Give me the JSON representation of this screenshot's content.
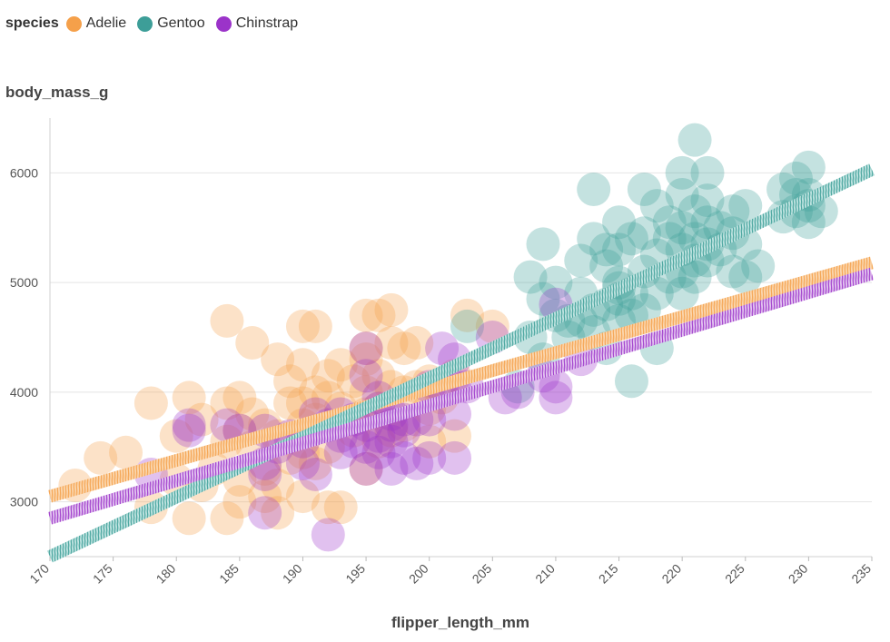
{
  "legend": {
    "title": "species",
    "items": [
      {
        "label": "Adelie",
        "color": "#f5a04a"
      },
      {
        "label": "Gentoo",
        "color": "#3d9e98"
      },
      {
        "label": "Chinstrap",
        "color": "#9b33c9"
      }
    ]
  },
  "chart_data": {
    "type": "scatter",
    "xlabel": "flipper_length_mm",
    "ylabel": "body_mass_g",
    "xlim": [
      170,
      235
    ],
    "ylim": [
      2500,
      6500
    ],
    "xticks": [
      170,
      175,
      180,
      185,
      190,
      195,
      200,
      205,
      210,
      215,
      220,
      225,
      230,
      235
    ],
    "yticks": [
      3000,
      4000,
      5000,
      6000
    ],
    "grid": true,
    "legend_position": "top-left",
    "series": [
      {
        "name": "Adelie",
        "color": "#f5a04a",
        "trend": {
          "x": [
            170,
            235
          ],
          "y": [
            3050,
            5180
          ]
        },
        "points": [
          [
            172,
            3150
          ],
          [
            174,
            3400
          ],
          [
            176,
            3450
          ],
          [
            178,
            2950
          ],
          [
            178,
            3900
          ],
          [
            180,
            3600
          ],
          [
            180,
            3200
          ],
          [
            181,
            3950
          ],
          [
            181,
            2850
          ],
          [
            182,
            3750
          ],
          [
            182,
            3150
          ],
          [
            183,
            3300
          ],
          [
            184,
            4650
          ],
          [
            184,
            3900
          ],
          [
            184,
            3550
          ],
          [
            184,
            2850
          ],
          [
            185,
            3950
          ],
          [
            185,
            3650
          ],
          [
            185,
            3200
          ],
          [
            185,
            3000
          ],
          [
            186,
            4450
          ],
          [
            186,
            3800
          ],
          [
            186,
            3500
          ],
          [
            187,
            3700
          ],
          [
            187,
            3300
          ],
          [
            187,
            3050
          ],
          [
            188,
            4300
          ],
          [
            188,
            3600
          ],
          [
            188,
            3150
          ],
          [
            188,
            2900
          ],
          [
            189,
            4100
          ],
          [
            189,
            3900
          ],
          [
            189,
            3400
          ],
          [
            190,
            4600
          ],
          [
            190,
            4250
          ],
          [
            190,
            3900
          ],
          [
            190,
            3700
          ],
          [
            190,
            3450
          ],
          [
            190,
            3050
          ],
          [
            191,
            4600
          ],
          [
            191,
            4000
          ],
          [
            191,
            3750
          ],
          [
            191,
            3350
          ],
          [
            192,
            4150
          ],
          [
            192,
            3950
          ],
          [
            192,
            3500
          ],
          [
            192,
            2950
          ],
          [
            193,
            4250
          ],
          [
            193,
            3850
          ],
          [
            193,
            2950
          ],
          [
            194,
            4100
          ],
          [
            194,
            3650
          ],
          [
            195,
            4700
          ],
          [
            195,
            4400
          ],
          [
            195,
            4300
          ],
          [
            195,
            4000
          ],
          [
            195,
            3800
          ],
          [
            195,
            3300
          ],
          [
            196,
            4700
          ],
          [
            196,
            4150
          ],
          [
            196,
            3850
          ],
          [
            196,
            3550
          ],
          [
            197,
            4750
          ],
          [
            197,
            4450
          ],
          [
            197,
            4050
          ],
          [
            197,
            3650
          ],
          [
            198,
            4400
          ],
          [
            198,
            4000
          ],
          [
            198,
            3700
          ],
          [
            199,
            4450
          ],
          [
            199,
            4050
          ],
          [
            200,
            4100
          ],
          [
            200,
            3850
          ],
          [
            200,
            3550
          ],
          [
            201,
            3950
          ],
          [
            202,
            4150
          ],
          [
            202,
            3600
          ],
          [
            203,
            4700
          ],
          [
            205,
            4600
          ]
        ]
      },
      {
        "name": "Gentoo",
        "color": "#3d9e98",
        "trend": {
          "x": [
            170,
            235
          ],
          "y": [
            2500,
            6030
          ]
        },
        "points": [
          [
            203,
            4600
          ],
          [
            207,
            4050
          ],
          [
            208,
            5050
          ],
          [
            208,
            4500
          ],
          [
            209,
            5350
          ],
          [
            209,
            4850
          ],
          [
            209,
            4300
          ],
          [
            210,
            4700
          ],
          [
            210,
            5000
          ],
          [
            211,
            4650
          ],
          [
            211,
            4500
          ],
          [
            212,
            5200
          ],
          [
            212,
            4900
          ],
          [
            212,
            4650
          ],
          [
            213,
            5850
          ],
          [
            213,
            5400
          ],
          [
            213,
            4750
          ],
          [
            213,
            4550
          ],
          [
            214,
            5300
          ],
          [
            214,
            5150
          ],
          [
            214,
            4800
          ],
          [
            214,
            4400
          ],
          [
            215,
            5550
          ],
          [
            215,
            5300
          ],
          [
            215,
            5000
          ],
          [
            215,
            4950
          ],
          [
            215,
            4850
          ],
          [
            215,
            4650
          ],
          [
            216,
            5400
          ],
          [
            216,
            4900
          ],
          [
            216,
            4700
          ],
          [
            216,
            4100
          ],
          [
            217,
            5850
          ],
          [
            217,
            5450
          ],
          [
            217,
            5100
          ],
          [
            217,
            4750
          ],
          [
            218,
            5700
          ],
          [
            218,
            5250
          ],
          [
            218,
            4900
          ],
          [
            218,
            4400
          ],
          [
            219,
            5550
          ],
          [
            219,
            5400
          ],
          [
            219,
            5050
          ],
          [
            220,
            6000
          ],
          [
            220,
            5800
          ],
          [
            220,
            5500
          ],
          [
            220,
            5300
          ],
          [
            220,
            5100
          ],
          [
            220,
            4900
          ],
          [
            221,
            6300
          ],
          [
            221,
            5650
          ],
          [
            221,
            5400
          ],
          [
            221,
            5200
          ],
          [
            221,
            5050
          ],
          [
            222,
            6000
          ],
          [
            222,
            5750
          ],
          [
            222,
            5550
          ],
          [
            222,
            5350
          ],
          [
            222,
            5200
          ],
          [
            223,
            5500
          ],
          [
            223,
            5300
          ],
          [
            224,
            5650
          ],
          [
            224,
            5450
          ],
          [
            224,
            5100
          ],
          [
            225,
            5700
          ],
          [
            225,
            5350
          ],
          [
            225,
            5050
          ],
          [
            226,
            5150
          ],
          [
            228,
            5600
          ],
          [
            228,
            5850
          ],
          [
            229,
            5950
          ],
          [
            229,
            5650
          ],
          [
            229,
            5800
          ],
          [
            230,
            6050
          ],
          [
            230,
            5800
          ],
          [
            230,
            5700
          ],
          [
            230,
            5550
          ],
          [
            231,
            5650
          ]
        ]
      },
      {
        "name": "Chinstrap",
        "color": "#9b33c9",
        "trend": {
          "x": [
            170,
            235
          ],
          "y": [
            2850,
            5080
          ]
        },
        "points": [
          [
            178,
            3250
          ],
          [
            181,
            3700
          ],
          [
            181,
            3650
          ],
          [
            184,
            3700
          ],
          [
            185,
            3650
          ],
          [
            187,
            3650
          ],
          [
            187,
            3350
          ],
          [
            187,
            3250
          ],
          [
            187,
            2900
          ],
          [
            188,
            3500
          ],
          [
            189,
            3600
          ],
          [
            190,
            3550
          ],
          [
            190,
            3350
          ],
          [
            191,
            3800
          ],
          [
            191,
            3250
          ],
          [
            192,
            3700
          ],
          [
            192,
            2700
          ],
          [
            193,
            3800
          ],
          [
            193,
            3600
          ],
          [
            193,
            3450
          ],
          [
            194,
            3750
          ],
          [
            194,
            3550
          ],
          [
            195,
            4400
          ],
          [
            195,
            4150
          ],
          [
            195,
            3700
          ],
          [
            195,
            3500
          ],
          [
            195,
            3300
          ],
          [
            196,
            3950
          ],
          [
            196,
            3850
          ],
          [
            196,
            3600
          ],
          [
            196,
            3450
          ],
          [
            197,
            3800
          ],
          [
            197,
            3700
          ],
          [
            197,
            3550
          ],
          [
            197,
            3300
          ],
          [
            198,
            3750
          ],
          [
            198,
            3650
          ],
          [
            198,
            3400
          ],
          [
            199,
            3750
          ],
          [
            199,
            3350
          ],
          [
            200,
            4050
          ],
          [
            200,
            3750
          ],
          [
            200,
            3400
          ],
          [
            201,
            4400
          ],
          [
            201,
            4050
          ],
          [
            202,
            4300
          ],
          [
            202,
            4050
          ],
          [
            202,
            3800
          ],
          [
            202,
            3400
          ],
          [
            203,
            4050
          ],
          [
            205,
            4500
          ],
          [
            206,
            3950
          ],
          [
            207,
            4000
          ],
          [
            209,
            4150
          ],
          [
            210,
            4800
          ],
          [
            210,
            4050
          ],
          [
            210,
            3950
          ],
          [
            212,
            4300
          ]
        ]
      }
    ]
  }
}
